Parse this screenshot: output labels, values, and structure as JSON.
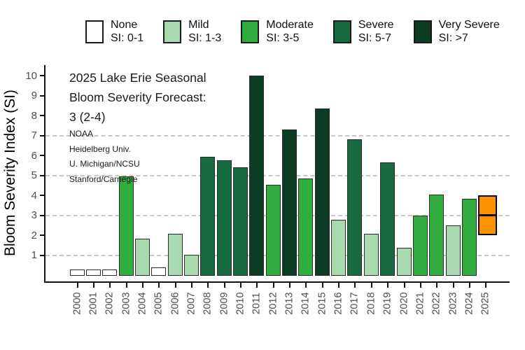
{
  "legend": {
    "items": [
      {
        "label": "None",
        "range": "SI: 0-1",
        "color": "#ffffff"
      },
      {
        "label": "Mild",
        "range": "SI: 1-3",
        "color": "#a9d9ae"
      },
      {
        "label": "Moderate",
        "range": "SI: 3-5",
        "color": "#31ac3e"
      },
      {
        "label": "Severe",
        "range": "SI: 5-7",
        "color": "#176940"
      },
      {
        "label": "Very Severe",
        "range": "SI: >7",
        "color": "#0c3c24"
      }
    ]
  },
  "annotation": {
    "title_line1": "2025 Lake Erie Seasonal",
    "title_line2": "Bloom Severity Forecast:",
    "title_line3": "3 (2-4)",
    "credits": [
      "NOAA",
      "Heidelberg Univ.",
      "U. Michigan/NCSU",
      "Stanford/Carnegie"
    ]
  },
  "chart_data": {
    "type": "bar",
    "title": "2025 Lake Erie Seasonal Bloom Severity Forecast: 3 (2-4)",
    "xlabel": "",
    "ylabel": "Bloom Severity Index (SI)",
    "ylim": [
      0,
      10.5
    ],
    "yticks": [
      1,
      2,
      3,
      4,
      5,
      6,
      7,
      8,
      9,
      10
    ],
    "gridlines_at": [
      1,
      3,
      5,
      7
    ],
    "grid_style": "dashed",
    "legend_position": "top",
    "categories": [
      "2000",
      "2001",
      "2002",
      "2003",
      "2004",
      "2005",
      "2006",
      "2007",
      "2008",
      "2009",
      "2010",
      "2011",
      "2012",
      "2013",
      "2014",
      "2015",
      "2016",
      "2017",
      "2018",
      "2019",
      "2020",
      "2021",
      "2022",
      "2023",
      "2024",
      "2025"
    ],
    "values": [
      0.3,
      0.3,
      0.3,
      4.95,
      1.85,
      0.4,
      2.1,
      1.05,
      5.95,
      5.75,
      5.4,
      10.0,
      4.55,
      7.3,
      4.85,
      8.35,
      2.8,
      6.8,
      2.1,
      5.65,
      1.4,
      3.0,
      4.05,
      2.5,
      3.85,
      null
    ],
    "severity_class": [
      "none",
      "none",
      "none",
      "moderate",
      "mild",
      "none",
      "mild",
      "mild",
      "severe",
      "severe",
      "severe",
      "very_severe",
      "moderate",
      "very_severe",
      "moderate",
      "very_severe",
      "mild",
      "severe",
      "mild",
      "severe",
      "mild",
      "moderate",
      "moderate",
      "mild",
      "moderate",
      "forecast"
    ],
    "forecast": {
      "year": "2025",
      "value": 3,
      "range_low": 2,
      "range_high": 4
    },
    "colors": {
      "none": "#ffffff",
      "mild": "#a9d9ae",
      "moderate": "#31ac3e",
      "severe": "#176940",
      "very_severe": "#0c3c24",
      "forecast_orange": "#fb9200",
      "gridline": "#c7c7c7",
      "axis": "#111111",
      "tick_label": "#4d4d4d"
    }
  }
}
